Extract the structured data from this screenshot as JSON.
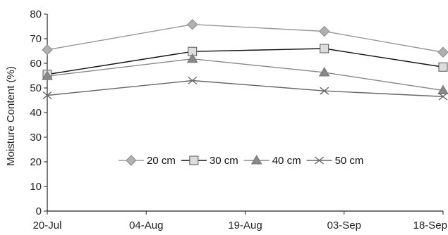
{
  "chart_data": {
    "type": "line",
    "title": "",
    "xlabel": "",
    "ylabel": "Moisture Content (%)",
    "x_ticks": [
      "20-Jul",
      "04-Aug",
      "19-Aug",
      "03-Sep",
      "18-Sep"
    ],
    "x_range": [
      "2000-07-20",
      "2000-09-18"
    ],
    "ylim": [
      0,
      80
    ],
    "y_ticks": [
      0,
      10,
      20,
      30,
      40,
      50,
      60,
      70,
      80
    ],
    "grid": false,
    "legend_position": "center-right",
    "series": [
      {
        "name": "20 cm",
        "marker": "diamond",
        "color": "#999999",
        "points": [
          {
            "x": "2000-07-20",
            "y": 65.5
          },
          {
            "x": "2000-08-11",
            "y": 75.8
          },
          {
            "x": "2000-08-31",
            "y": 73.0
          },
          {
            "x": "2000-09-18",
            "y": 64.5
          }
        ]
      },
      {
        "name": "30 cm",
        "marker": "square",
        "color": "#111111",
        "points": [
          {
            "x": "2000-07-20",
            "y": 55.5
          },
          {
            "x": "2000-08-11",
            "y": 64.8
          },
          {
            "x": "2000-08-31",
            "y": 66.0
          },
          {
            "x": "2000-09-18",
            "y": 58.5
          }
        ]
      },
      {
        "name": "40 cm",
        "marker": "triangle",
        "color": "#888888",
        "points": [
          {
            "x": "2000-07-20",
            "y": 54.8
          },
          {
            "x": "2000-08-11",
            "y": 61.8
          },
          {
            "x": "2000-08-31",
            "y": 56.3
          },
          {
            "x": "2000-09-18",
            "y": 49.0
          }
        ]
      },
      {
        "name": "50 cm",
        "marker": "x",
        "color": "#666666",
        "points": [
          {
            "x": "2000-07-20",
            "y": 47.0
          },
          {
            "x": "2000-08-11",
            "y": 53.0
          },
          {
            "x": "2000-08-31",
            "y": 48.8
          },
          {
            "x": "2000-09-18",
            "y": 46.5
          }
        ]
      }
    ]
  }
}
